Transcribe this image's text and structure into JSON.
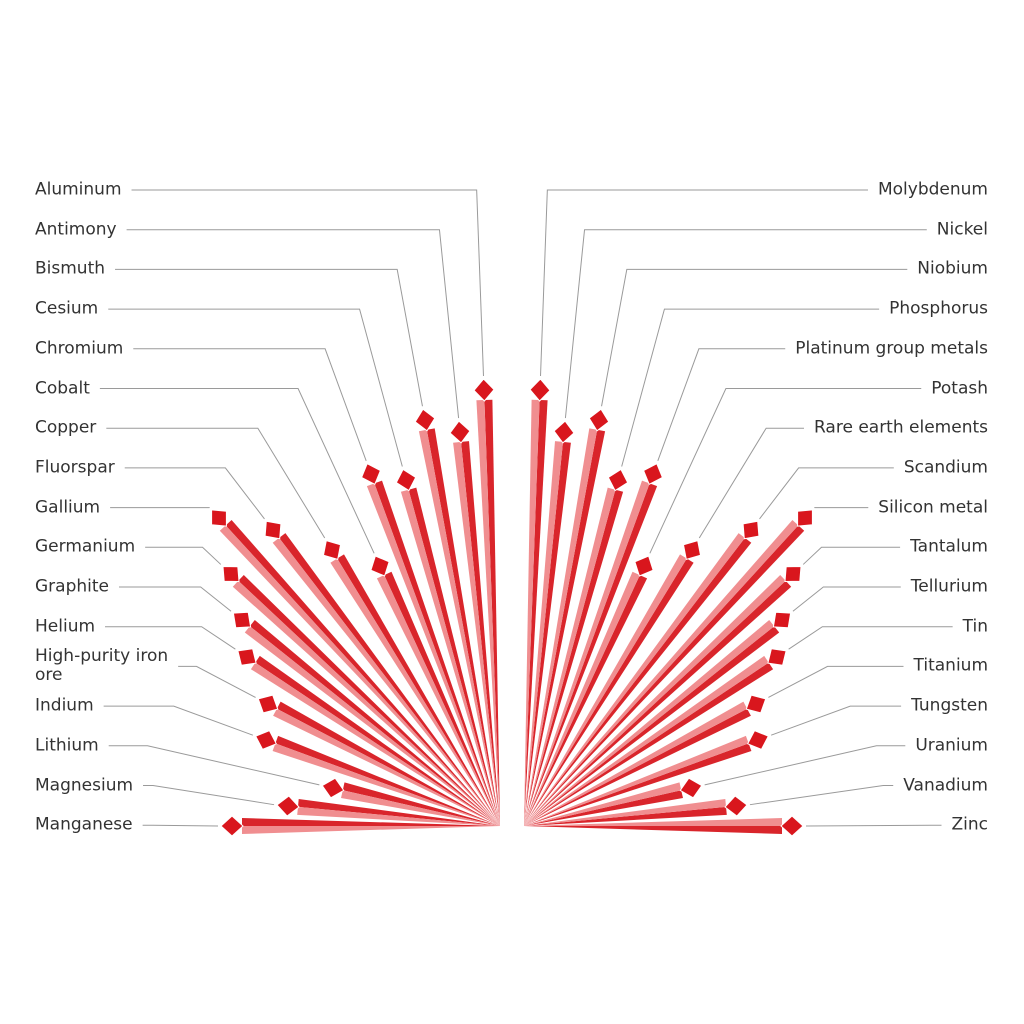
{
  "left_labels": [
    "Aluminum",
    "Antimony",
    "Bismuth",
    "Cesium",
    "Chromium",
    "Cobalt",
    "Copper",
    "Fluorspar",
    "Gallium",
    "Germanium",
    "Graphite",
    "Helium",
    "High-purity iron ore",
    "Indium",
    "Lithium",
    "Magnesium",
    "Manganese"
  ],
  "right_labels": [
    "Molybdenum",
    "Nickel",
    "Niobium",
    "Phosphorus",
    "Platinum group metals",
    "Potash",
    "Rare earth elements",
    "Scandium",
    "Silicon metal",
    "Tantalum",
    "Tellurium",
    "Tin",
    "Titanium",
    "Tungsten",
    "Uranium",
    "Vanadium",
    "Zinc"
  ]
}
